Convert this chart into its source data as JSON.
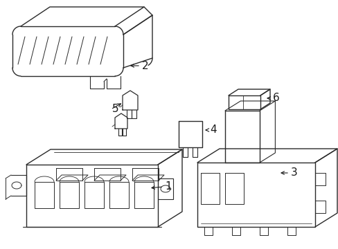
{
  "background_color": "#ffffff",
  "line_color": "#2a2a2a",
  "fig_width": 4.89,
  "fig_height": 3.6,
  "dpi": 100
}
